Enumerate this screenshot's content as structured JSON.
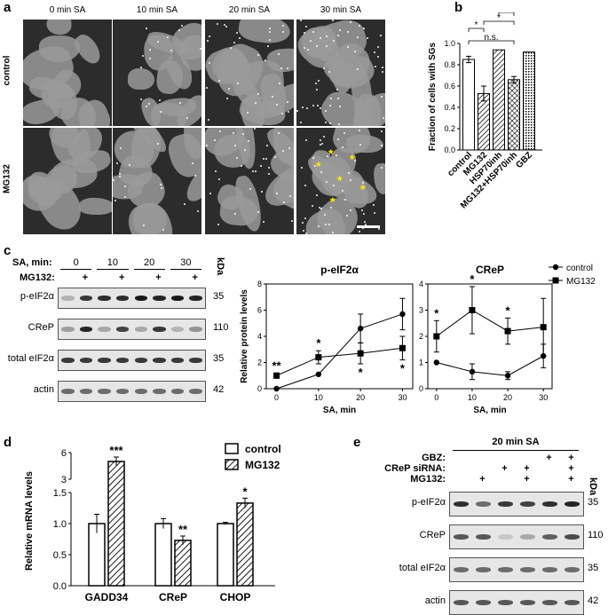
{
  "panels": {
    "a": "a",
    "b": "b",
    "c": "c",
    "d": "d",
    "e": "e"
  },
  "panel_a": {
    "columns": [
      "0 min SA",
      "10 min SA",
      "20 min SA",
      "30 min SA"
    ],
    "rows": [
      "control",
      "MG132"
    ],
    "marker": "*"
  },
  "panel_c_blot": {
    "sa_label": "SA, min:",
    "sa_values": [
      "0",
      "10",
      "20",
      "30"
    ],
    "mg_label": "MG132:",
    "plus": "+",
    "kda": "kDa",
    "rows": [
      {
        "label": "p-eIF2α",
        "kda": "35",
        "intensity": [
          0.25,
          0.85,
          0.9,
          0.9,
          1,
          0.95,
          1,
          0.95
        ]
      },
      {
        "label": "CReP",
        "kda": "110",
        "intensity": [
          0.35,
          0.95,
          0.3,
          0.8,
          0.3,
          0.85,
          0.25,
          0.4
        ]
      },
      {
        "label": "total eIF2α",
        "kda": "35",
        "intensity": [
          0.85,
          0.85,
          0.85,
          0.85,
          0.85,
          0.85,
          0.85,
          0.85
        ]
      },
      {
        "label": "actin",
        "kda": "42",
        "intensity": [
          0.6,
          0.6,
          0.6,
          0.6,
          0.6,
          0.6,
          0.6,
          0.6
        ]
      }
    ]
  },
  "panel_d_legend": [
    "control",
    "MG132"
  ],
  "panel_e_blot": {
    "title": "20 min SA",
    "row_labels": [
      "GBZ:",
      "CReP siRNA:",
      "MG132:"
    ],
    "signs": [
      [
        "",
        "",
        "",
        "",
        "+",
        "+"
      ],
      [
        "",
        "",
        "+",
        "+",
        "",
        "+"
      ],
      [
        "",
        "+",
        "",
        "+",
        "",
        "+"
      ]
    ],
    "kda": "kDa",
    "rows": [
      {
        "label": "p-eIF2α",
        "kda": "35",
        "intensity": [
          0.9,
          0.6,
          0.85,
          0.8,
          0.9,
          0.95
        ]
      },
      {
        "label": "CReP",
        "kda": "110",
        "intensity": [
          0.7,
          0.7,
          0.15,
          0.3,
          0.65,
          0.75
        ]
      },
      {
        "label": "total eIF2α",
        "kda": "35",
        "intensity": [
          0.6,
          0.6,
          0.6,
          0.6,
          0.6,
          0.6
        ]
      },
      {
        "label": "actin",
        "kda": "42",
        "intensity": [
          0.7,
          0.7,
          0.7,
          0.7,
          0.7,
          0.7
        ]
      }
    ]
  },
  "chart_data": [
    {
      "id": "b",
      "type": "bar",
      "categories": [
        "control",
        "MG132",
        "HSP70inh",
        "MG132+HSP70inh",
        "GBZ"
      ],
      "values": [
        0.85,
        0.53,
        0.94,
        0.66,
        0.92
      ],
      "errors": [
        0.03,
        0.07,
        0.0,
        0.03,
        0.0
      ],
      "ylabel": "Fraction of cells with SGs",
      "ylim": [
        0,
        1.0
      ],
      "yticks": [
        "0.0",
        "0.2",
        "0.4",
        "0.6",
        "0.8",
        "1.0"
      ],
      "significance": [
        {
          "from": 0,
          "to": 1,
          "label": "*"
        },
        {
          "from": 0,
          "to": 3,
          "label": "n.s."
        },
        {
          "from": 1,
          "to": 3,
          "label": "*"
        },
        {
          "from": 2,
          "to": 3,
          "label": "*"
        }
      ]
    },
    {
      "id": "c1",
      "type": "line",
      "title": "p-eIF2α",
      "x": [
        0,
        10,
        20,
        30
      ],
      "ylabel": "Relative protein levels",
      "xlabel": "SA, min",
      "ylim": [
        0,
        8
      ],
      "yticks": [
        "0",
        "2",
        "4",
        "6",
        "8"
      ],
      "xticks": [
        "0",
        "10",
        "20",
        "30"
      ],
      "series": [
        {
          "name": "control",
          "marker": "circle",
          "values": [
            0.0,
            1.1,
            4.6,
            5.7
          ],
          "errors": [
            0.0,
            0.0,
            1.1,
            1.2
          ]
        },
        {
          "name": "MG132",
          "marker": "square",
          "values": [
            1.0,
            2.4,
            2.7,
            3.1
          ],
          "errors": [
            0.2,
            0.5,
            0.8,
            0.9
          ]
        }
      ],
      "stars": [
        {
          "x": 0,
          "label": "**",
          "pos": "above"
        },
        {
          "x": 10,
          "label": "*",
          "pos": "above"
        },
        {
          "x": 20,
          "label": "*",
          "pos": "below"
        },
        {
          "x": 30,
          "label": "*",
          "pos": "below"
        }
      ]
    },
    {
      "id": "c2",
      "type": "line",
      "title": "CReP",
      "x": [
        0,
        10,
        20,
        30
      ],
      "xlabel": "SA, min",
      "ylim": [
        0,
        4
      ],
      "yticks": [
        "0",
        "1",
        "2",
        "3",
        "4"
      ],
      "xticks": [
        "0",
        "10",
        "20",
        "30"
      ],
      "legend": [
        "control",
        "MG132"
      ],
      "series": [
        {
          "name": "control",
          "marker": "circle",
          "values": [
            1.0,
            0.65,
            0.5,
            1.25
          ],
          "errors": [
            0.0,
            0.3,
            0.15,
            0.45
          ]
        },
        {
          "name": "MG132",
          "marker": "square",
          "values": [
            2.0,
            3.0,
            2.2,
            2.35
          ],
          "errors": [
            0.6,
            0.9,
            0.5,
            1.1
          ]
        }
      ],
      "stars": [
        {
          "x": 0,
          "label": "*",
          "pos": "above"
        },
        {
          "x": 10,
          "label": "*",
          "pos": "above"
        },
        {
          "x": 20,
          "label": "*",
          "pos": "above"
        }
      ]
    },
    {
      "id": "d",
      "type": "bar",
      "categories": [
        "GADD34",
        "CReP",
        "CHOP"
      ],
      "series": [
        {
          "name": "control",
          "values": [
            1.0,
            1.0,
            1.0
          ],
          "errors": [
            0.15,
            0.08,
            0.02
          ]
        },
        {
          "name": "MG132",
          "values": [
            5.0,
            0.73,
            1.33
          ],
          "errors": [
            0.5,
            0.07,
            0.08
          ]
        }
      ],
      "ylabel": "Relative mRNA levels",
      "yticks_lower": [
        "0.0",
        "0.5",
        "1.0",
        "1.5"
      ],
      "yticks_upper": [
        "3",
        "6"
      ],
      "stars": [
        "***",
        "**",
        "*"
      ]
    }
  ]
}
